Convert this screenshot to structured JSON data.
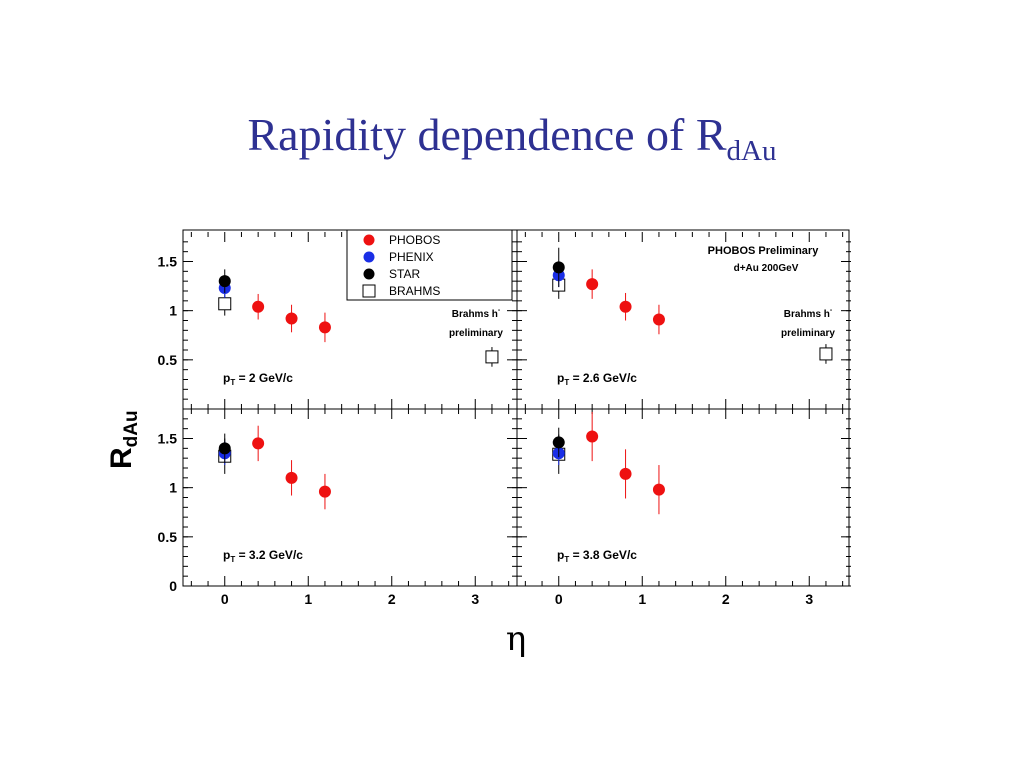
{
  "slide": {
    "title_main": "Rapidity dependence of R",
    "title_sub": "dAu"
  },
  "colors": {
    "title": "#2e3192",
    "PHOBOS": "#ee1111",
    "PHENIX": "#1a2ee6",
    "STAR": "#000000",
    "BRAHMS": "#000000"
  },
  "chart_data": {
    "type": "scatter",
    "ylabel_main": "R",
    "ylabel_sub": "dAu",
    "xlabel": "η",
    "xlim": [
      -0.5,
      3.5
    ],
    "ylim": [
      0,
      1.8
    ],
    "xticks": [
      "0",
      "1",
      "2",
      "3"
    ],
    "yticks": [
      "0",
      "0.5",
      "1",
      "1.5"
    ],
    "legend": {
      "placement": "top",
      "entries": [
        "PHOBOS",
        "PHENIX",
        "STAR",
        "BRAHMS"
      ]
    },
    "annotations": {
      "preliminary": "PHOBOS Preliminary",
      "system": "d+Au 200GeV",
      "brahms_line1": "Brahms h",
      "brahms_sup": "-",
      "brahms_line2": "preliminary"
    },
    "panels": [
      {
        "pt_label": "2 GeV/c",
        "series": [
          {
            "name": "PHOBOS",
            "points": [
              {
                "x": 0.4,
                "y": 1.04,
                "err": 0.13
              },
              {
                "x": 0.8,
                "y": 0.92,
                "err": 0.14
              },
              {
                "x": 1.2,
                "y": 0.83,
                "err": 0.15
              }
            ]
          },
          {
            "name": "PHENIX",
            "points": [
              {
                "x": 0.0,
                "y": 1.23,
                "err": 0.1
              }
            ]
          },
          {
            "name": "STAR",
            "points": [
              {
                "x": 0.0,
                "y": 1.3,
                "err": 0.12
              }
            ]
          },
          {
            "name": "BRAHMS",
            "points": [
              {
                "x": 0.0,
                "y": 1.07,
                "err": 0.12
              },
              {
                "x": 3.2,
                "y": 0.53,
                "err": 0.1
              }
            ]
          }
        ]
      },
      {
        "pt_label": "2.6 GeV/c",
        "series": [
          {
            "name": "PHOBOS",
            "points": [
              {
                "x": 0.4,
                "y": 1.27,
                "err": 0.15
              },
              {
                "x": 0.8,
                "y": 1.04,
                "err": 0.14
              },
              {
                "x": 1.2,
                "y": 0.91,
                "err": 0.15
              }
            ]
          },
          {
            "name": "PHENIX",
            "points": [
              {
                "x": 0.0,
                "y": 1.36,
                "err": 0.12
              }
            ]
          },
          {
            "name": "STAR",
            "points": [
              {
                "x": 0.0,
                "y": 1.44,
                "err": 0.2
              }
            ]
          },
          {
            "name": "BRAHMS",
            "points": [
              {
                "x": 0.0,
                "y": 1.26,
                "err": 0.14
              },
              {
                "x": 3.2,
                "y": 0.56,
                "err": 0.1
              }
            ]
          }
        ]
      },
      {
        "pt_label": "3.2 GeV/c",
        "series": [
          {
            "name": "PHOBOS",
            "points": [
              {
                "x": 0.4,
                "y": 1.45,
                "err": 0.18
              },
              {
                "x": 0.8,
                "y": 1.1,
                "err": 0.18
              },
              {
                "x": 1.2,
                "y": 0.96,
                "err": 0.18
              }
            ]
          },
          {
            "name": "PHENIX",
            "points": [
              {
                "x": 0.0,
                "y": 1.35,
                "err": 0.12
              }
            ]
          },
          {
            "name": "STAR",
            "points": [
              {
                "x": 0.0,
                "y": 1.4,
                "err": 0.15
              }
            ]
          },
          {
            "name": "BRAHMS",
            "points": [
              {
                "x": 0.0,
                "y": 1.32,
                "err": 0.18
              }
            ]
          }
        ]
      },
      {
        "pt_label": "3.8 GeV/c",
        "series": [
          {
            "name": "PHOBOS",
            "points": [
              {
                "x": 0.4,
                "y": 1.52,
                "err": 0.25
              },
              {
                "x": 0.8,
                "y": 1.14,
                "err": 0.25
              },
              {
                "x": 1.2,
                "y": 0.98,
                "err": 0.25
              }
            ]
          },
          {
            "name": "PHENIX",
            "points": [
              {
                "x": 0.0,
                "y": 1.35,
                "err": 0.12
              }
            ]
          },
          {
            "name": "STAR",
            "points": [
              {
                "x": 0.0,
                "y": 1.46,
                "err": 0.15
              }
            ]
          },
          {
            "name": "BRAHMS",
            "points": [
              {
                "x": 0.0,
                "y": 1.34,
                "err": 0.2
              }
            ]
          }
        ]
      }
    ]
  }
}
